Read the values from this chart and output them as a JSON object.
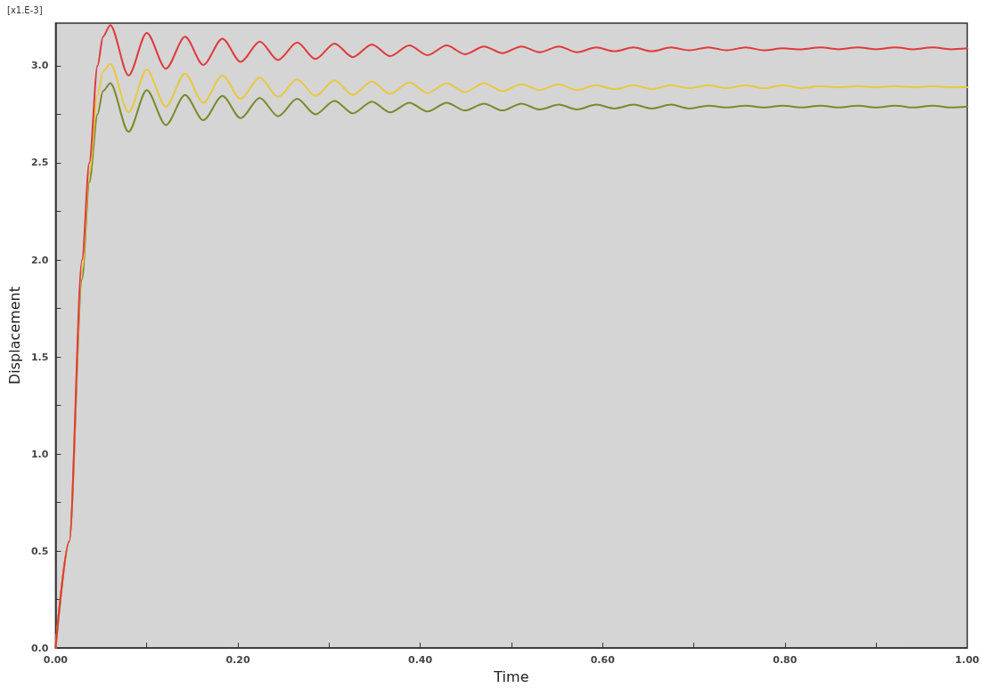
{
  "chart_data": {
    "type": "line",
    "xlabel": "Time",
    "ylabel": "Displacement",
    "annotations": [
      "[x1.E-3]"
    ],
    "x": [
      0,
      0.015,
      0.029,
      0.037,
      0.046,
      0.052,
      0.06,
      0.08,
      0.1,
      0.121,
      0.142,
      0.162,
      0.183,
      0.203,
      0.224,
      0.244,
      0.265,
      0.285,
      0.306,
      0.326,
      0.347,
      0.367,
      0.388,
      0.408,
      0.429,
      0.449,
      0.47,
      0.49,
      0.511,
      0.531,
      0.552,
      0.572,
      0.593,
      0.613,
      0.634,
      0.654,
      0.675,
      0.695,
      0.716,
      0.736,
      0.757,
      0.777,
      0.798,
      0.818,
      0.839,
      0.859,
      0.88,
      0.9,
      0.921,
      0.941,
      0.962,
      0.982,
      1.0
    ],
    "series": [
      {
        "color": "#e03a3a",
        "values": [
          0,
          0.55,
          2.0,
          2.5,
          3.0,
          3.15,
          3.21,
          2.95,
          3.17,
          2.985,
          3.15,
          3.005,
          3.14,
          3.02,
          3.125,
          3.03,
          3.12,
          3.035,
          3.115,
          3.045,
          3.11,
          3.05,
          3.105,
          3.055,
          3.105,
          3.06,
          3.1,
          3.065,
          3.1,
          3.07,
          3.1,
          3.07,
          3.095,
          3.075,
          3.095,
          3.075,
          3.095,
          3.08,
          3.095,
          3.08,
          3.095,
          3.08,
          3.09,
          3.085,
          3.095,
          3.085,
          3.095,
          3.085,
          3.095,
          3.085,
          3.095,
          3.085,
          3.09
        ]
      },
      {
        "color": "#e8c840",
        "values": [
          0,
          0.55,
          1.95,
          2.45,
          2.85,
          2.97,
          3.01,
          2.76,
          2.98,
          2.79,
          2.96,
          2.81,
          2.95,
          2.83,
          2.94,
          2.84,
          2.93,
          2.845,
          2.925,
          2.85,
          2.92,
          2.855,
          2.915,
          2.86,
          2.91,
          2.865,
          2.91,
          2.87,
          2.905,
          2.875,
          2.905,
          2.875,
          2.9,
          2.88,
          2.9,
          2.88,
          2.9,
          2.885,
          2.9,
          2.885,
          2.9,
          2.885,
          2.9,
          2.885,
          2.895,
          2.89,
          2.895,
          2.89,
          2.895,
          2.89,
          2.895,
          2.89,
          2.89
        ]
      },
      {
        "color": "#7a8a2a",
        "values": [
          0,
          0.55,
          1.9,
          2.4,
          2.75,
          2.87,
          2.91,
          2.66,
          2.875,
          2.695,
          2.85,
          2.72,
          2.845,
          2.73,
          2.835,
          2.74,
          2.83,
          2.75,
          2.82,
          2.755,
          2.815,
          2.76,
          2.81,
          2.765,
          2.81,
          2.77,
          2.805,
          2.77,
          2.805,
          2.775,
          2.8,
          2.775,
          2.8,
          2.78,
          2.8,
          2.78,
          2.8,
          2.78,
          2.795,
          2.785,
          2.795,
          2.785,
          2.795,
          2.785,
          2.795,
          2.785,
          2.795,
          2.785,
          2.795,
          2.785,
          2.795,
          2.785,
          2.79
        ]
      }
    ],
    "xlim": [
      0,
      1.0
    ],
    "xticks": [
      {
        "value": 0,
        "label": "0.00"
      },
      {
        "value": 0.1,
        "label": null
      },
      {
        "value": 0.2,
        "label": "0.20"
      },
      {
        "value": 0.3,
        "label": null
      },
      {
        "value": 0.4,
        "label": "0.40"
      },
      {
        "value": 0.5,
        "label": null
      },
      {
        "value": 0.6,
        "label": "0.60"
      },
      {
        "value": 0.7,
        "label": null
      },
      {
        "value": 0.8,
        "label": "0.80"
      },
      {
        "value": 0.9,
        "label": null
      },
      {
        "value": 1.0,
        "label": "1.00"
      }
    ],
    "ylim": [
      0,
      3.22
    ],
    "yticks": [
      {
        "value": 0,
        "label": "0.0"
      },
      {
        "value": 0.25,
        "label": null
      },
      {
        "value": 0.5,
        "label": "0.5"
      },
      {
        "value": 0.75,
        "label": null
      },
      {
        "value": 1.0,
        "label": "1.0"
      },
      {
        "value": 1.25,
        "label": null
      },
      {
        "value": 1.5,
        "label": "1.5"
      },
      {
        "value": 1.75,
        "label": null
      },
      {
        "value": 2.0,
        "label": "2.0"
      },
      {
        "value": 2.25,
        "label": null
      },
      {
        "value": 2.5,
        "label": "2.5"
      },
      {
        "value": 2.75,
        "label": null
      },
      {
        "value": 3.0,
        "label": "3.0"
      }
    ],
    "grid": false,
    "marker": "none",
    "line_style": "solid"
  }
}
